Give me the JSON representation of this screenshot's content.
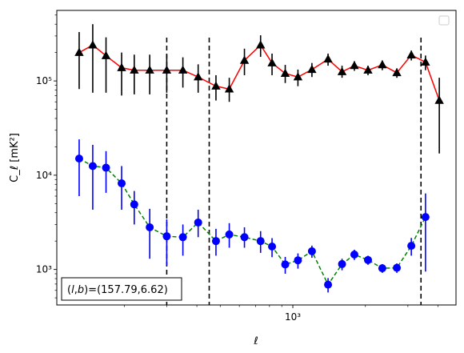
{
  "chart_data": {
    "type": "line",
    "xscale": "log",
    "yscale": "log",
    "xlim": [
      105,
      4750
    ],
    "ylim": [
      420,
      560000
    ],
    "xlabel": "ℓ",
    "ylabel": "C_ℓ  [mK²]",
    "x_ticks": [
      {
        "value": 1000,
        "label": "10³"
      }
    ],
    "y_ticks": [
      {
        "value": 1000,
        "label": "10³"
      },
      {
        "value": 10000,
        "label": "10⁴"
      },
      {
        "value": 100000,
        "label": "10⁵"
      }
    ],
    "vlines": [
      300,
      450,
      3400
    ],
    "legend": {
      "placement": "top-right",
      "entries": []
    },
    "annotation": "(l,b)=(157.79,6.62)",
    "annotation_parts": [
      "(",
      "l",
      ",",
      "b",
      ")=(157.79,6.62)"
    ],
    "grid": false,
    "series": [
      {
        "color": "#ff0000",
        "marker": "triangle",
        "marker_color": "#000000",
        "errorbar_color": "#000000",
        "linestyle": "solid",
        "points": [
          {
            "x": 130,
            "y": 200000,
            "lo": 82000,
            "hi": 330000
          },
          {
            "x": 148,
            "y": 240000,
            "lo": 75000,
            "hi": 400000
          },
          {
            "x": 168,
            "y": 185000,
            "lo": 75000,
            "hi": 290000
          },
          {
            "x": 195,
            "y": 138000,
            "lo": 70000,
            "hi": 200000
          },
          {
            "x": 220,
            "y": 130000,
            "lo": 72000,
            "hi": 190000
          },
          {
            "x": 255,
            "y": 130000,
            "lo": 72000,
            "hi": 190000
          },
          {
            "x": 300,
            "y": 130000,
            "lo": 75000,
            "hi": 190000
          },
          {
            "x": 350,
            "y": 130000,
            "lo": 85000,
            "hi": 178000
          },
          {
            "x": 405,
            "y": 110000,
            "lo": 75000,
            "hi": 150000
          },
          {
            "x": 480,
            "y": 88000,
            "lo": 62000,
            "hi": 115000
          },
          {
            "x": 545,
            "y": 82000,
            "lo": 60000,
            "hi": 108000
          },
          {
            "x": 630,
            "y": 165000,
            "lo": 115000,
            "hi": 220000
          },
          {
            "x": 735,
            "y": 240000,
            "lo": 180000,
            "hi": 305000
          },
          {
            "x": 820,
            "y": 155000,
            "lo": 115000,
            "hi": 195000
          },
          {
            "x": 930,
            "y": 120000,
            "lo": 95000,
            "hi": 148000
          },
          {
            "x": 1050,
            "y": 110000,
            "lo": 88000,
            "hi": 132000
          },
          {
            "x": 1200,
            "y": 132000,
            "lo": 110000,
            "hi": 155000
          },
          {
            "x": 1400,
            "y": 170000,
            "lo": 145000,
            "hi": 195000
          },
          {
            "x": 1600,
            "y": 125000,
            "lo": 108000,
            "hi": 145000
          },
          {
            "x": 1800,
            "y": 145000,
            "lo": 128000,
            "hi": 162000
          },
          {
            "x": 2050,
            "y": 130000,
            "lo": 115000,
            "hi": 145000
          },
          {
            "x": 2350,
            "y": 148000,
            "lo": 130000,
            "hi": 165000
          },
          {
            "x": 2700,
            "y": 122000,
            "lo": 108000,
            "hi": 136000
          },
          {
            "x": 3100,
            "y": 188000,
            "lo": 165000,
            "hi": 210000
          },
          {
            "x": 3550,
            "y": 158000,
            "lo": 130000,
            "hi": 186000
          },
          {
            "x": 4050,
            "y": 62000,
            "lo": 17000,
            "hi": 108000
          }
        ]
      },
      {
        "color": "#008000",
        "marker": "circle",
        "marker_color": "#0000ff",
        "errorbar_color": "#0000ff",
        "linestyle": "dashed",
        "points": [
          {
            "x": 130,
            "y": 15000,
            "lo": 6000,
            "hi": 24000
          },
          {
            "x": 148,
            "y": 12500,
            "lo": 4300,
            "hi": 21000
          },
          {
            "x": 168,
            "y": 12000,
            "lo": 6500,
            "hi": 18000
          },
          {
            "x": 195,
            "y": 8200,
            "lo": 4300,
            "hi": 12500
          },
          {
            "x": 220,
            "y": 4900,
            "lo": 3000,
            "hi": 6800
          },
          {
            "x": 255,
            "y": 2800,
            "lo": 1300,
            "hi": 4400
          },
          {
            "x": 300,
            "y": 2250,
            "lo": 1100,
            "hi": 3400
          },
          {
            "x": 350,
            "y": 2200,
            "lo": 1400,
            "hi": 3000
          },
          {
            "x": 405,
            "y": 3150,
            "lo": 2200,
            "hi": 4300
          },
          {
            "x": 480,
            "y": 2000,
            "lo": 1400,
            "hi": 2700
          },
          {
            "x": 545,
            "y": 2350,
            "lo": 1700,
            "hi": 3100
          },
          {
            "x": 630,
            "y": 2200,
            "lo": 1700,
            "hi": 2800
          },
          {
            "x": 735,
            "y": 2000,
            "lo": 1500,
            "hi": 2550
          },
          {
            "x": 820,
            "y": 1750,
            "lo": 1350,
            "hi": 2150
          },
          {
            "x": 930,
            "y": 1130,
            "lo": 900,
            "hi": 1360
          },
          {
            "x": 1050,
            "y": 1250,
            "lo": 1020,
            "hi": 1480
          },
          {
            "x": 1200,
            "y": 1560,
            "lo": 1330,
            "hi": 1790
          },
          {
            "x": 1400,
            "y": 690,
            "lo": 570,
            "hi": 810
          },
          {
            "x": 1600,
            "y": 1140,
            "lo": 980,
            "hi": 1300
          },
          {
            "x": 1800,
            "y": 1440,
            "lo": 1260,
            "hi": 1620
          },
          {
            "x": 2050,
            "y": 1260,
            "lo": 1120,
            "hi": 1400
          },
          {
            "x": 2350,
            "y": 1030,
            "lo": 920,
            "hi": 1140
          },
          {
            "x": 2700,
            "y": 1040,
            "lo": 920,
            "hi": 1160
          },
          {
            "x": 3100,
            "y": 1780,
            "lo": 1400,
            "hi": 2160
          },
          {
            "x": 3550,
            "y": 3600,
            "lo": 950,
            "hi": 6400
          }
        ]
      }
    ]
  }
}
